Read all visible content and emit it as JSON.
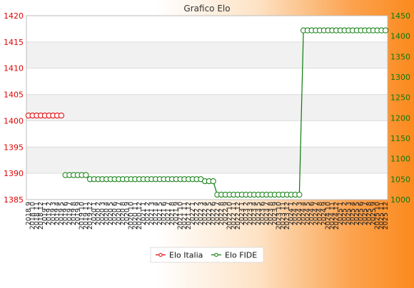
{
  "chart_data": {
    "type": "line",
    "title": "Grafico Elo",
    "x": [
      "2018 9",
      "2018 10",
      "2018 11",
      "2018 12",
      "2019 1",
      "2019 2",
      "2019 3",
      "2019 4",
      "2019 5",
      "2019 6",
      "2019 7",
      "2019 8",
      "2019 9",
      "2019 10",
      "2019 11",
      "2019 12",
      "2020 1",
      "2020 2",
      "2020 3",
      "2020 4",
      "2020 5",
      "2020 6",
      "2020 7",
      "2020 8",
      "2020 9",
      "2020 10",
      "2020 11",
      "2020 12",
      "2021 1",
      "2021 2",
      "2021 3",
      "2021 4",
      "2021 5",
      "2021 6",
      "2021 7",
      "2021 8",
      "2021 9",
      "2021 10",
      "2021 11",
      "2021 12",
      "2022 1",
      "2022 2",
      "2022 3",
      "2022 4",
      "2022 5",
      "2022 6",
      "2022 7",
      "2022 8",
      "2022 9",
      "2022 10",
      "2022 11",
      "2022 12",
      "2023 1",
      "2023 2",
      "2023 3",
      "2023 4",
      "2023 5",
      "2023 6",
      "2023 7",
      "2023 8",
      "2023 9",
      "2023 10",
      "2023 11",
      "2023 12",
      "2024 1",
      "2024 2",
      "2024 3",
      "2024 4",
      "2024 5",
      "2024 6",
      "2024 7",
      "2024 8",
      "2024 9",
      "2024 10",
      "2024 11",
      "2024 12",
      "2025 1",
      "2025 2",
      "2025 3",
      "2025 4",
      "2025 5",
      "2025 6",
      "2025 7",
      "2025 8",
      "2025 9",
      "2025 10",
      "2025 11",
      "2025 12"
    ],
    "series": [
      {
        "name": "Elo Italia",
        "axis": "left",
        "color": "#e00000",
        "values": [
          1401,
          1401,
          1401,
          1401,
          1401,
          1401,
          1401,
          1401,
          1401,
          null,
          null,
          null,
          null,
          null,
          null,
          null,
          null,
          null,
          null,
          null,
          null,
          null,
          null,
          null,
          null,
          null,
          null,
          null,
          null,
          null,
          null,
          null,
          null,
          null,
          null,
          null,
          null,
          null,
          null,
          null,
          null,
          null,
          null,
          null,
          null,
          null,
          null,
          null,
          null,
          null,
          null,
          null,
          null,
          null,
          null,
          null,
          null,
          null,
          null,
          null,
          null,
          null,
          null,
          null,
          null,
          null,
          null,
          null,
          null,
          null,
          null,
          null,
          null,
          null,
          null,
          null,
          null,
          null,
          null,
          null,
          null,
          null,
          null,
          null,
          null,
          null,
          null,
          null
        ]
      },
      {
        "name": "Elo FIDE",
        "axis": "right",
        "color": "#0a7a0a",
        "values": [
          null,
          null,
          null,
          null,
          null,
          null,
          null,
          null,
          null,
          1060,
          1060,
          1060,
          1060,
          1060,
          1060,
          1050,
          1050,
          1050,
          1050,
          1050,
          1050,
          1050,
          1050,
          1050,
          1050,
          1050,
          1050,
          1050,
          1050,
          1050,
          1050,
          1050,
          1050,
          1050,
          1050,
          1050,
          1050,
          1050,
          1050,
          1050,
          1050,
          1050,
          1050,
          1045,
          1045,
          1045,
          1012,
          1012,
          1012,
          1012,
          1012,
          1012,
          1012,
          1012,
          1012,
          1012,
          1012,
          1012,
          1012,
          1012,
          1012,
          1012,
          1012,
          1012,
          1012,
          1012,
          1012,
          1414,
          1414,
          1414,
          1414,
          1414,
          1414,
          1414,
          1414,
          1414,
          1414,
          1414,
          1414,
          1414,
          1414,
          1414,
          1414,
          1414,
          1414,
          1414,
          1414,
          1414
        ]
      }
    ],
    "y_left": {
      "ylim": [
        1385,
        1420
      ],
      "ticks": [
        1385,
        1390,
        1395,
        1400,
        1405,
        1410,
        1415,
        1420
      ],
      "color": "#e00000"
    },
    "y_right": {
      "ylim": [
        1000,
        1450
      ],
      "ticks": [
        1000,
        1050,
        1100,
        1150,
        1200,
        1250,
        1300,
        1350,
        1400,
        1450
      ],
      "color": "#0a7a0a"
    },
    "grid": true,
    "legend": "bottom-center"
  }
}
